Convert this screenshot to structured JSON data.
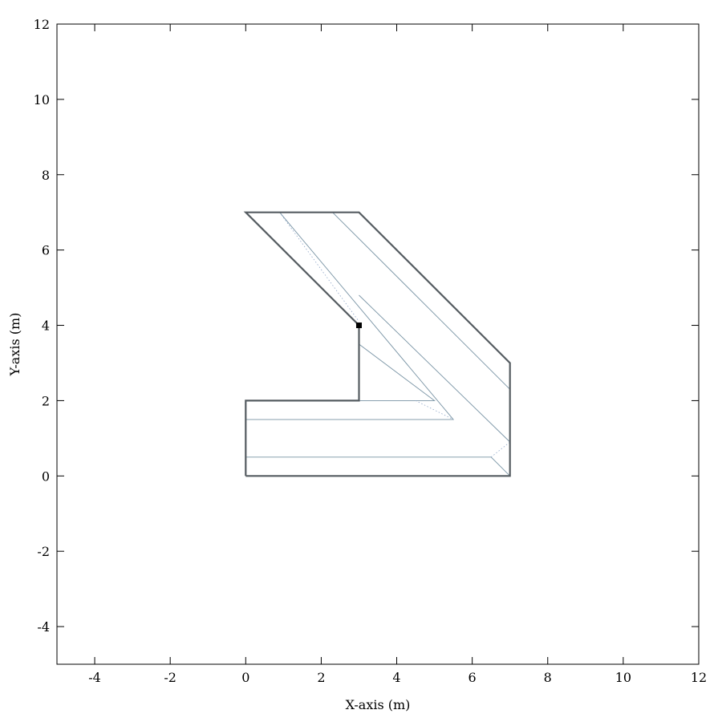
{
  "chart_data": {
    "type": "line",
    "xlabel": "X-axis (m)",
    "ylabel": "Y-axis (m)",
    "xlim": [
      -5,
      12
    ],
    "ylim": [
      -5,
      12
    ],
    "x_ticks": [
      -4,
      -2,
      0,
      2,
      4,
      6,
      8,
      10,
      12
    ],
    "y_ticks": [
      -4,
      -2,
      0,
      2,
      4,
      6,
      8,
      10,
      12
    ],
    "grid": false,
    "legend": "none",
    "colors": {
      "outline": "#555c61",
      "path": "#7893a4",
      "dotted": "#8fa6c8",
      "marker": "#000000"
    },
    "outline": [
      [
        0,
        0
      ],
      [
        7,
        0
      ],
      [
        7,
        3
      ],
      [
        3,
        7
      ],
      [
        0,
        7
      ],
      [
        3,
        4
      ],
      [
        3,
        2
      ],
      [
        0,
        2
      ],
      [
        0,
        0
      ]
    ],
    "path_lines": [
      [
        [
          0,
          0.5
        ],
        [
          6.5,
          0.5
        ],
        [
          7,
          0
        ]
      ],
      [
        [
          0,
          1.5
        ],
        [
          5.5,
          1.5
        ],
        [
          0.9,
          7
        ]
      ],
      [
        [
          3,
          2
        ],
        [
          5,
          2
        ],
        [
          3,
          3.5
        ]
      ],
      [
        [
          2.3,
          7
        ],
        [
          7,
          2.3
        ]
      ],
      [
        [
          7,
          0.9
        ],
        [
          3,
          4.8
        ]
      ]
    ],
    "dotted_lines": [
      [
        [
          0.9,
          7
        ],
        [
          3,
          4.1
        ]
      ],
      [
        [
          4.5,
          2
        ],
        [
          5.5,
          1.5
        ]
      ],
      [
        [
          6.5,
          0.5
        ],
        [
          7,
          0.9
        ]
      ]
    ],
    "marker": [
      3,
      4
    ]
  }
}
